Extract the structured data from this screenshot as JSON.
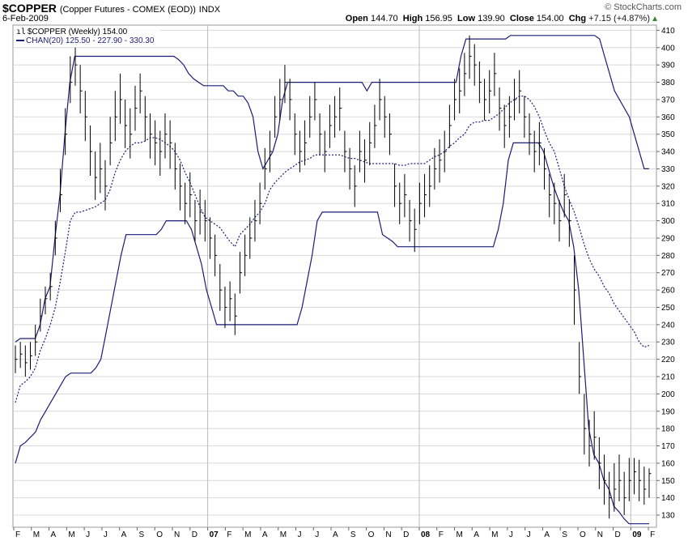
{
  "header": {
    "symbol": "$COPPER",
    "description": "(Copper Futures - COMEX (EOD))",
    "exchange": "INDX",
    "date": "6-Feb-2009",
    "credit": "© StockCharts.com",
    "open_label": "Open",
    "open": "144.70",
    "high_label": "High",
    "high": "156.95",
    "low_label": "Low",
    "low": "139.90",
    "close_label": "Close",
    "close": "154.00",
    "chg_label": "Chg",
    "chg": "+7.15 (+4.87%)",
    "chg_icon": "up-triangle-icon"
  },
  "legend": {
    "price": "$COPPER (Weekly) 154.00",
    "channel": "CHAN(20) 125.50 - 227.90 - 330.30"
  },
  "colors": {
    "price": "#000000",
    "channel": "#1c1c78",
    "grid": "#d8d8d8",
    "frame": "#999999"
  },
  "chart_data": {
    "type": "line",
    "ylim": [
      123,
      413
    ],
    "yticks": [
      130,
      140,
      150,
      160,
      170,
      180,
      190,
      200,
      210,
      220,
      230,
      240,
      250,
      260,
      270,
      280,
      290,
      300,
      310,
      320,
      330,
      340,
      350,
      360,
      370,
      380,
      390,
      400,
      410
    ],
    "xtick_labels": [
      "F",
      "M",
      "A",
      "M",
      "J",
      "J",
      "A",
      "S",
      "O",
      "N",
      "D",
      "07",
      "F",
      "M",
      "A",
      "M",
      "J",
      "J",
      "A",
      "S",
      "O",
      "N",
      "D",
      "08",
      "F",
      "M",
      "A",
      "M",
      "J",
      "J",
      "A",
      "S",
      "O",
      "N",
      "D",
      "09",
      "F"
    ],
    "bold_xticks": [
      "07",
      "08",
      "09"
    ],
    "series": [
      {
        "kind": "ohlc",
        "close": [
          220,
          223,
          218,
          222,
          230,
          245,
          255,
          262,
          290,
          315,
          350,
          380,
          390,
          375,
          360,
          340,
          325,
          330,
          320,
          345,
          360,
          370,
          355,
          350,
          365,
          375,
          360,
          350,
          345,
          340,
          350,
          345,
          330,
          320,
          310,
          315,
          300,
          305,
          300,
          290,
          280,
          260,
          250,
          255,
          245,
          270,
          280,
          290,
          300,
          310,
          330,
          340,
          360,
          370,
          380,
          370,
          350,
          340,
          345,
          360,
          370,
          350,
          340,
          355,
          360,
          365,
          340,
          330,
          320,
          340,
          335,
          345,
          355,
          370,
          360,
          350,
          320,
          310,
          315,
          300,
          295,
          310,
          315,
          320,
          330,
          335,
          340,
          355,
          370,
          375,
          385,
          395,
          390,
          380,
          370,
          375,
          385,
          365,
          355,
          360,
          370,
          375,
          360,
          350,
          340,
          345,
          330,
          315,
          310,
          300,
          315,
          300,
          260,
          210,
          180,
          170,
          175,
          160,
          150,
          140,
          145,
          150,
          140,
          150,
          155,
          150,
          145,
          154
        ],
        "high": [
          228,
          230,
          228,
          230,
          240,
          255,
          262,
          270,
          300,
          330,
          365,
          395,
          400,
          390,
          375,
          355,
          340,
          345,
          335,
          360,
          375,
          385,
          370,
          365,
          378,
          385,
          372,
          362,
          358,
          352,
          362,
          358,
          345,
          333,
          322,
          328,
          312,
          318,
          312,
          302,
          292,
          275,
          262,
          265,
          258,
          282,
          292,
          302,
          312,
          322,
          342,
          352,
          372,
          382,
          390,
          382,
          362,
          352,
          358,
          372,
          380,
          362,
          352,
          367,
          372,
          377,
          352,
          342,
          332,
          352,
          347,
          357,
          367,
          382,
          372,
          362,
          333,
          322,
          327,
          312,
          307,
          322,
          327,
          332,
          342,
          347,
          352,
          367,
          382,
          388,
          397,
          407,
          402,
          392,
          382,
          387,
          397,
          377,
          367,
          372,
          382,
          387,
          372,
          362,
          352,
          357,
          342,
          327,
          322,
          312,
          327,
          312,
          280,
          230,
          200,
          185,
          190,
          175,
          165,
          155,
          160,
          165,
          155,
          163,
          163,
          162,
          158,
          157
        ],
        "low": [
          212,
          215,
          210,
          214,
          222,
          236,
          246,
          254,
          280,
          305,
          338,
          368,
          378,
          362,
          346,
          326,
          312,
          316,
          306,
          332,
          346,
          356,
          342,
          336,
          352,
          362,
          346,
          336,
          332,
          326,
          336,
          330,
          318,
          306,
          298,
          302,
          288,
          292,
          288,
          278,
          268,
          248,
          238,
          242,
          234,
          258,
          268,
          278,
          288,
          298,
          318,
          328,
          348,
          358,
          368,
          358,
          338,
          328,
          332,
          348,
          358,
          338,
          328,
          342,
          348,
          352,
          328,
          318,
          308,
          328,
          322,
          332,
          342,
          358,
          348,
          338,
          308,
          298,
          302,
          288,
          282,
          298,
          302,
          308,
          318,
          322,
          328,
          342,
          358,
          362,
          372,
          382,
          378,
          368,
          358,
          362,
          372,
          352,
          342,
          348,
          358,
          362,
          348,
          338,
          328,
          332,
          318,
          302,
          298,
          288,
          302,
          285,
          240,
          200,
          165,
          158,
          162,
          145,
          136,
          128,
          132,
          138,
          130,
          138,
          142,
          138,
          136,
          140
        ]
      },
      {
        "kind": "line",
        "name": "upper",
        "values": [
          230,
          232,
          232,
          232,
          232,
          240,
          255,
          262,
          290,
          315,
          350,
          380,
          395,
          395,
          395,
          395,
          395,
          395,
          395,
          395,
          395,
          395,
          395,
          395,
          395,
          395,
          395,
          395,
          395,
          395,
          395,
          395,
          395,
          393,
          390,
          385,
          382,
          380,
          378,
          378,
          378,
          378,
          378,
          375,
          375,
          372,
          372,
          368,
          360,
          340,
          330,
          335,
          340,
          350,
          370,
          380,
          380,
          380,
          380,
          380,
          380,
          380,
          380,
          380,
          380,
          380,
          380,
          380,
          380,
          380,
          380,
          375,
          380,
          380,
          380,
          380,
          380,
          380,
          380,
          380,
          380,
          380,
          380,
          380,
          380,
          380,
          380,
          380,
          380,
          380,
          395,
          405,
          405,
          405,
          405,
          405,
          405,
          405,
          405,
          405,
          407,
          407,
          407,
          407,
          407,
          407,
          407,
          407,
          407,
          407,
          407,
          407,
          407,
          407,
          407,
          407,
          407,
          407,
          405,
          395,
          385,
          375,
          370,
          365,
          360,
          350,
          340,
          330,
          330
        ]
      },
      {
        "kind": "line",
        "name": "middle",
        "values": [
          195,
          205,
          207,
          210,
          215,
          225,
          232,
          240,
          250,
          265,
          282,
          300,
          305,
          305,
          306,
          307,
          308,
          310,
          312,
          318,
          328,
          335,
          340,
          343,
          345,
          345,
          346,
          348,
          348,
          347,
          345,
          343,
          340,
          335,
          328,
          322,
          315,
          308,
          302,
          300,
          298,
          296,
          292,
          288,
          285,
          292,
          295,
          298,
          302,
          305,
          310,
          318,
          322,
          325,
          328,
          330,
          332,
          334,
          335,
          336,
          338,
          338,
          338,
          338,
          338,
          338,
          337,
          336,
          336,
          335,
          334,
          333,
          333,
          333,
          333,
          333,
          333,
          332,
          332,
          333,
          333,
          333,
          333,
          335,
          337,
          338,
          340,
          343,
          345,
          348,
          350,
          355,
          357,
          357,
          358,
          358,
          360,
          362,
          365,
          368,
          370,
          372,
          372,
          370,
          366,
          360,
          352,
          345,
          340,
          330,
          320,
          312,
          305,
          296,
          286,
          278,
          272,
          268,
          262,
          258,
          252,
          248,
          244,
          240,
          236,
          230,
          227,
          228
        ]
      },
      {
        "kind": "line",
        "name": "lower",
        "values": [
          160,
          170,
          172,
          175,
          178,
          185,
          190,
          195,
          200,
          205,
          210,
          212,
          212,
          212,
          212,
          212,
          215,
          220,
          235,
          250,
          265,
          280,
          292,
          292,
          292,
          292,
          292,
          292,
          292,
          295,
          300,
          300,
          300,
          300,
          300,
          295,
          285,
          275,
          260,
          250,
          240,
          240,
          240,
          240,
          240,
          240,
          240,
          240,
          240,
          240,
          240,
          240,
          240,
          240,
          240,
          240,
          240,
          250,
          265,
          280,
          300,
          305,
          305,
          305,
          305,
          305,
          305,
          305,
          305,
          305,
          305,
          305,
          305,
          292,
          290,
          288,
          285,
          285,
          285,
          285,
          285,
          285,
          285,
          285,
          285,
          285,
          285,
          285,
          285,
          285,
          285,
          285,
          285,
          285,
          285,
          285,
          295,
          310,
          335,
          345,
          345,
          345,
          345,
          345,
          345,
          340,
          330,
          320,
          312,
          305,
          300,
          285,
          260,
          220,
          180,
          165,
          160,
          150,
          145,
          135,
          132,
          128,
          125,
          125,
          125,
          125,
          125
        ]
      }
    ]
  }
}
